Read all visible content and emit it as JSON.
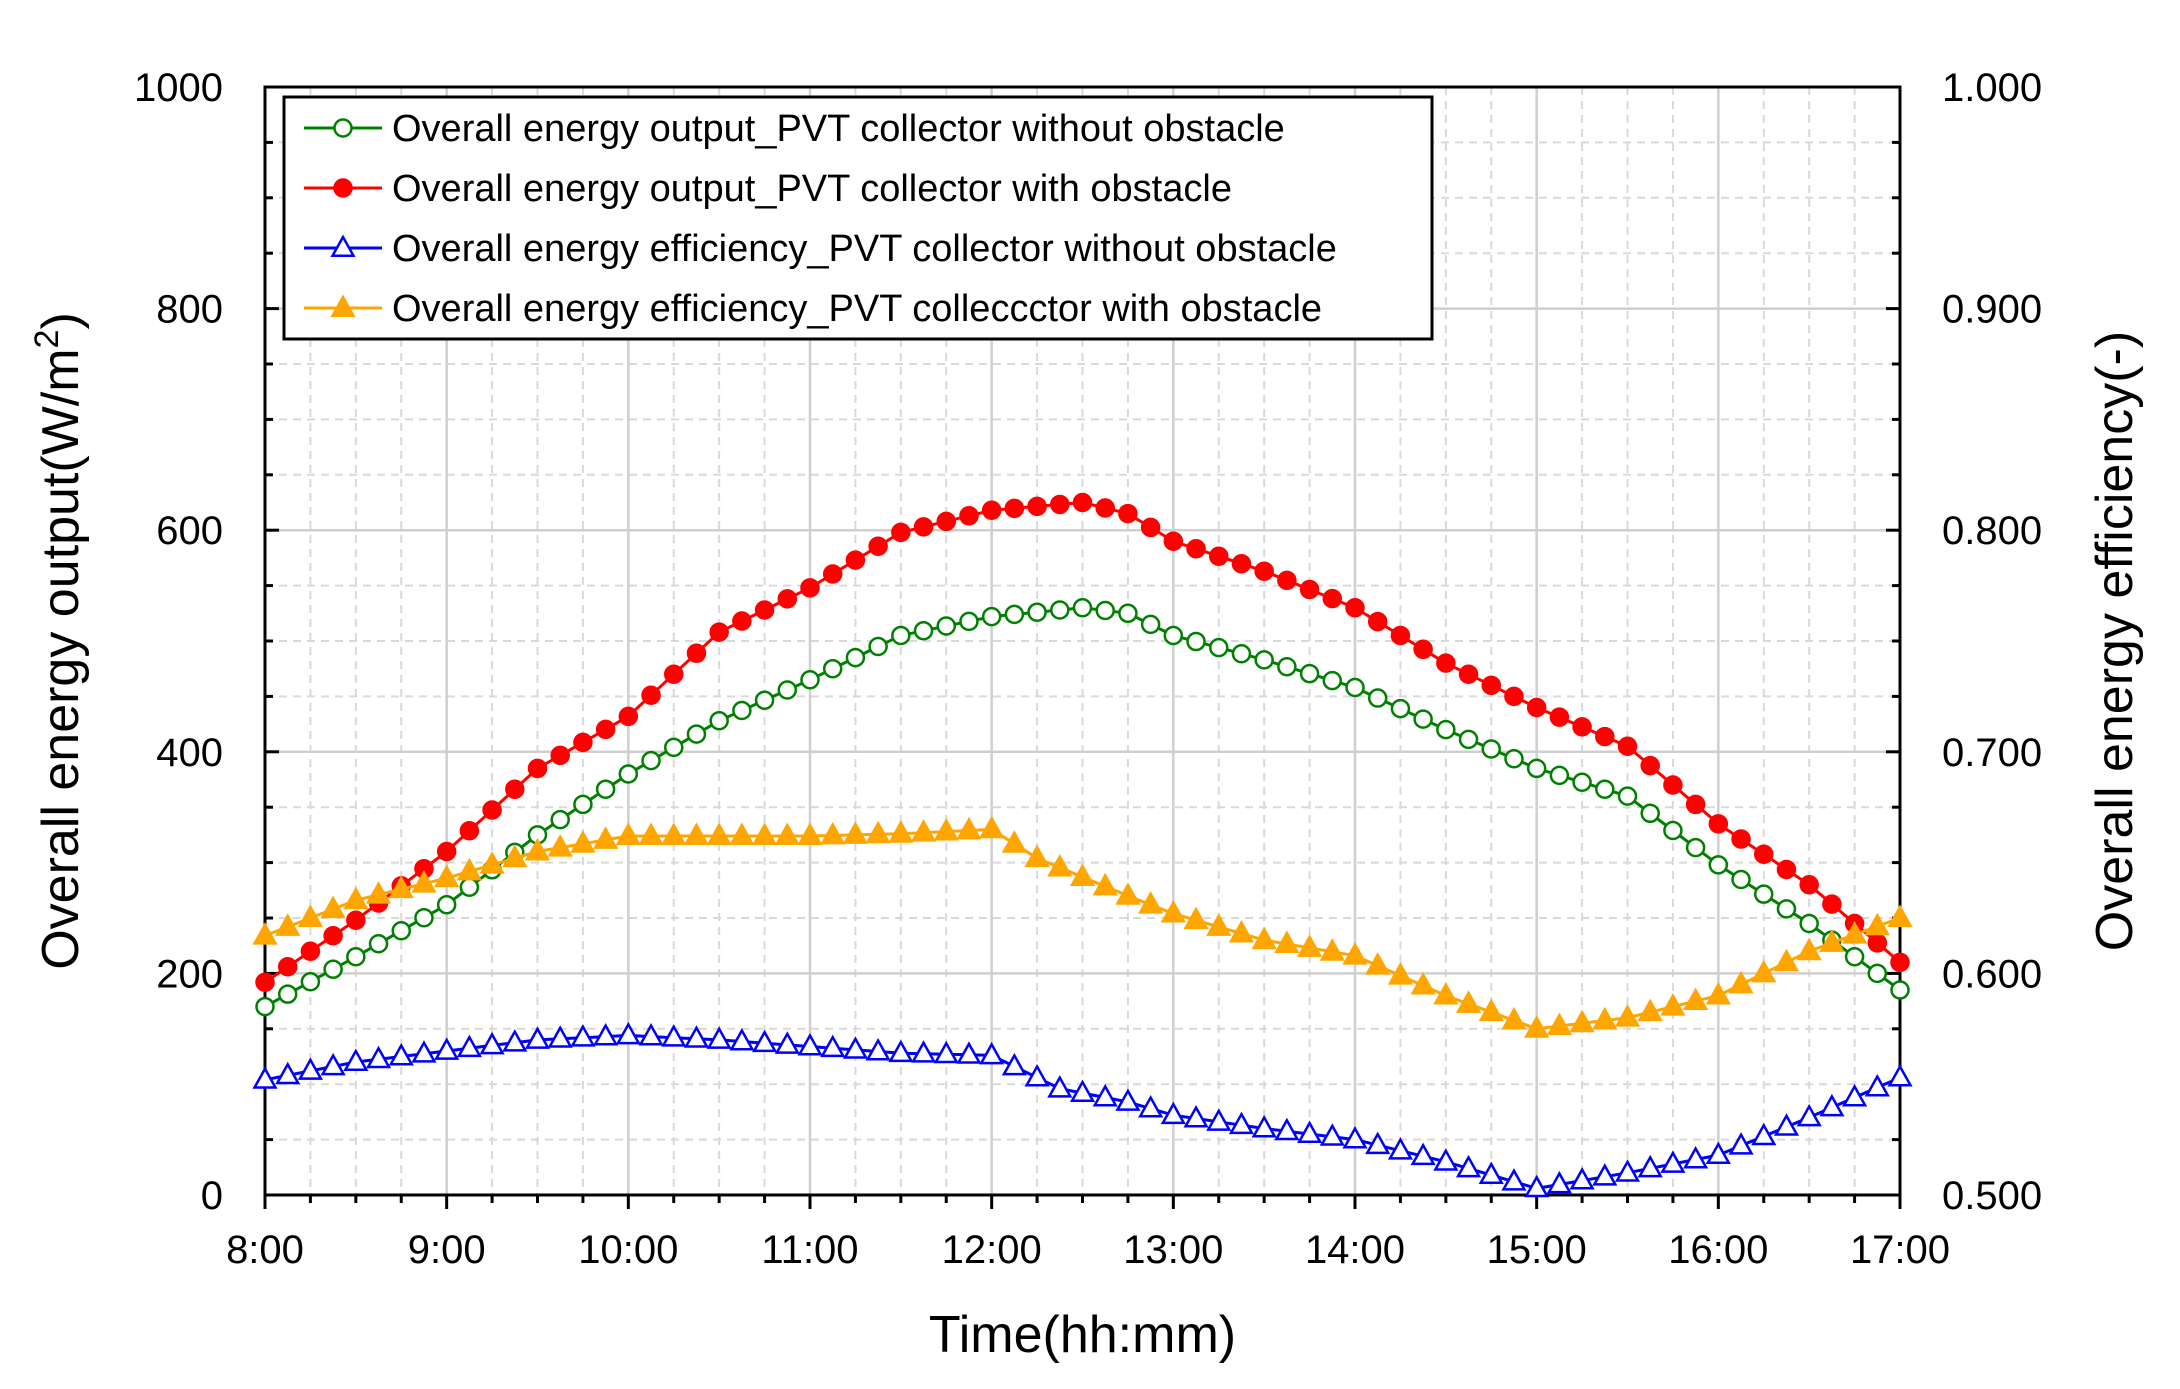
{
  "chart_data": {
    "type": "line",
    "xlabel": "Time(hh:mm)",
    "ylabel_left": "Overall energy output(W/m",
    "ylabel_left_sup": "2",
    "ylabel_left_close": ")",
    "ylabel_right": "Overall energy efficiency(-)",
    "x_range_hours": [
      8,
      17
    ],
    "y_left_range": [
      0,
      1000
    ],
    "y_right_range": [
      0.5,
      1.0
    ],
    "grid": true,
    "legend_position": "top-left",
    "x_ticks": [
      "8:00",
      "9:00",
      "10:00",
      "11:00",
      "12:00",
      "13:00",
      "14:00",
      "15:00",
      "16:00",
      "17:00"
    ],
    "y_left_ticks": [
      "0",
      "200",
      "400",
      "600",
      "800",
      "1000"
    ],
    "y_right_ticks": [
      "0.500",
      "0.600",
      "0.700",
      "0.800",
      "0.900",
      "1.000"
    ],
    "x_step_hours": 0.125,
    "series": [
      {
        "name": "Overall energy output_PVT collector without obstacle",
        "axis": "left",
        "color": "#008000",
        "marker": "circle-open",
        "anchors": [
          [
            8,
            170
          ],
          [
            8.5,
            215
          ],
          [
            9,
            262
          ],
          [
            9.5,
            325
          ],
          [
            10,
            380
          ],
          [
            10.5,
            428
          ],
          [
            11,
            465
          ],
          [
            11.5,
            505
          ],
          [
            12,
            522
          ],
          [
            12.5,
            530
          ],
          [
            12.75,
            525
          ],
          [
            13,
            505
          ],
          [
            13.5,
            483
          ],
          [
            14,
            458
          ],
          [
            14.5,
            420
          ],
          [
            15,
            385
          ],
          [
            15.5,
            360
          ],
          [
            16,
            298
          ],
          [
            16.5,
            245
          ],
          [
            17,
            185
          ]
        ]
      },
      {
        "name": "Overall energy output_PVT collector with obstacle",
        "axis": "left",
        "color": "#ff0000",
        "marker": "circle-filled",
        "anchors": [
          [
            8,
            192
          ],
          [
            8.5,
            248
          ],
          [
            9,
            310
          ],
          [
            9.5,
            385
          ],
          [
            10,
            432
          ],
          [
            10.5,
            508
          ],
          [
            11,
            548
          ],
          [
            11.5,
            598
          ],
          [
            12,
            618
          ],
          [
            12.5,
            625
          ],
          [
            12.75,
            615
          ],
          [
            13,
            590
          ],
          [
            13.5,
            563
          ],
          [
            14,
            530
          ],
          [
            14.5,
            480
          ],
          [
            15,
            440
          ],
          [
            15.5,
            405
          ],
          [
            16,
            335
          ],
          [
            16.5,
            280
          ],
          [
            16.75,
            245
          ],
          [
            17,
            210
          ]
        ]
      },
      {
        "name": "Overall energy efficiency_PVT collector without obstacle",
        "axis": "right",
        "color": "#0000ff",
        "marker": "triangle-open",
        "anchors": [
          [
            8,
            0.552
          ],
          [
            8.5,
            0.56
          ],
          [
            9,
            0.565
          ],
          [
            9.5,
            0.57
          ],
          [
            10,
            0.572
          ],
          [
            10.5,
            0.57
          ],
          [
            11,
            0.567
          ],
          [
            11.5,
            0.564
          ],
          [
            12,
            0.563
          ],
          [
            12.375,
            0.548
          ],
          [
            12.75,
            0.542
          ],
          [
            13,
            0.536
          ],
          [
            13.5,
            0.53
          ],
          [
            14,
            0.525
          ],
          [
            14.5,
            0.515
          ],
          [
            15,
            0.503
          ],
          [
            15.5,
            0.51
          ],
          [
            16,
            0.518
          ],
          [
            16.5,
            0.535
          ],
          [
            17,
            0.553
          ]
        ]
      },
      {
        "name": "Overall energy efficiency_PVT colleccctor with obstacle",
        "axis": "right",
        "color": "#ffa500",
        "marker": "triangle-filled",
        "anchors": [
          [
            8,
            0.617
          ],
          [
            8.5,
            0.633
          ],
          [
            9,
            0.643
          ],
          [
            9.5,
            0.655
          ],
          [
            10,
            0.662
          ],
          [
            10.5,
            0.662
          ],
          [
            11,
            0.662
          ],
          [
            11.5,
            0.663
          ],
          [
            12,
            0.665
          ],
          [
            12.25,
            0.652
          ],
          [
            12.75,
            0.635
          ],
          [
            13,
            0.627
          ],
          [
            13.5,
            0.615
          ],
          [
            14,
            0.608
          ],
          [
            14.5,
            0.59
          ],
          [
            15,
            0.575
          ],
          [
            15.5,
            0.58
          ],
          [
            16,
            0.59
          ],
          [
            16.5,
            0.61
          ],
          [
            17,
            0.625
          ]
        ]
      }
    ]
  }
}
